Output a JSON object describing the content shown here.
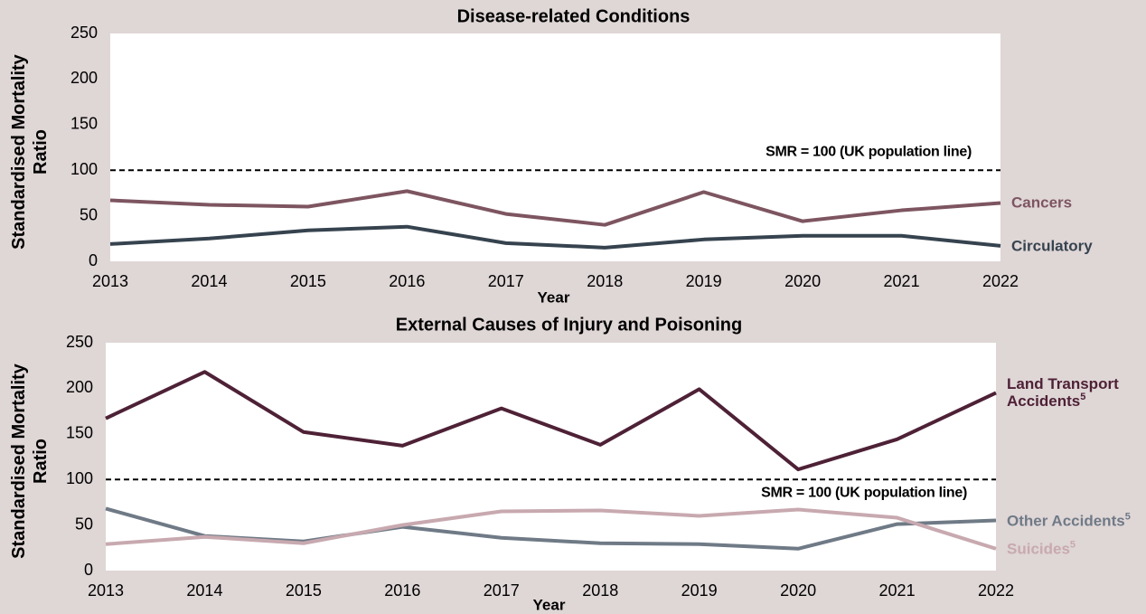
{
  "chart_data": [
    {
      "type": "line",
      "title": "Disease-related Conditions",
      "x_label": "Year",
      "y_label": "Standardised Mortality Ratio",
      "x": [
        2013,
        2014,
        2015,
        2016,
        2017,
        2018,
        2019,
        2020,
        2021,
        2022
      ],
      "xlim": [
        2013,
        2022
      ],
      "xticks": [
        2013,
        2014,
        2015,
        2016,
        2017,
        2018,
        2019,
        2020,
        2021,
        2022
      ],
      "ylim": [
        0,
        250
      ],
      "yticks": [
        0,
        50,
        100,
        150,
        200,
        250
      ],
      "reference_line": {
        "value": 100,
        "label": "SMR = 100 (UK population line)"
      },
      "series": [
        {
          "name": "Cancers",
          "color": "#7d5560",
          "values": [
            67,
            62,
            60,
            77,
            52,
            40,
            76,
            44,
            56,
            64
          ]
        },
        {
          "name": "Circulatory",
          "color": "#36434f",
          "values": [
            19,
            25,
            34,
            38,
            20,
            15,
            24,
            28,
            28,
            17
          ]
        }
      ]
    },
    {
      "type": "line",
      "title": "External Causes of Injury and Poisoning",
      "x_label": "Year",
      "y_label": "Standardised Mortality Ratio",
      "x": [
        2013,
        2014,
        2015,
        2016,
        2017,
        2018,
        2019,
        2020,
        2021,
        2022
      ],
      "xlim": [
        2013,
        2022
      ],
      "xticks": [
        2013,
        2014,
        2015,
        2016,
        2017,
        2018,
        2019,
        2020,
        2021,
        2022
      ],
      "ylim": [
        0,
        250
      ],
      "yticks": [
        0,
        50,
        100,
        150,
        200,
        250
      ],
      "reference_line": {
        "value": 100,
        "label": "SMR = 100 (UK population line)"
      },
      "series": [
        {
          "name": "Land Transport Accidents",
          "footnote": "5",
          "color": "#4e2136",
          "values": [
            167,
            218,
            152,
            137,
            178,
            138,
            199,
            111,
            144,
            195
          ]
        },
        {
          "name": "Other Accidents",
          "footnote": "5",
          "color": "#6f7a86",
          "values": [
            68,
            38,
            32,
            48,
            36,
            30,
            29,
            24,
            51,
            55
          ]
        },
        {
          "name": "Suicides",
          "footnote": "5",
          "color": "#c8a9b0",
          "values": [
            29,
            37,
            30,
            50,
            65,
            66,
            60,
            67,
            58,
            24
          ]
        }
      ]
    }
  ]
}
